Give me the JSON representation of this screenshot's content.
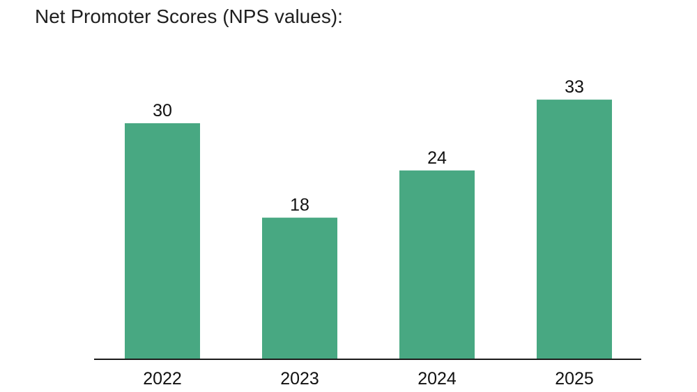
{
  "chart_data": {
    "type": "bar",
    "title": "Net Promoter Scores (NPS values):",
    "categories": [
      "2022",
      "2023",
      "2024",
      "2025"
    ],
    "values": [
      30,
      18,
      24,
      33
    ],
    "data_labels": true,
    "ylim": [
      0,
      45
    ],
    "grid": false,
    "bar_color": "#48a882",
    "axis_color": "#1a1a1a"
  }
}
